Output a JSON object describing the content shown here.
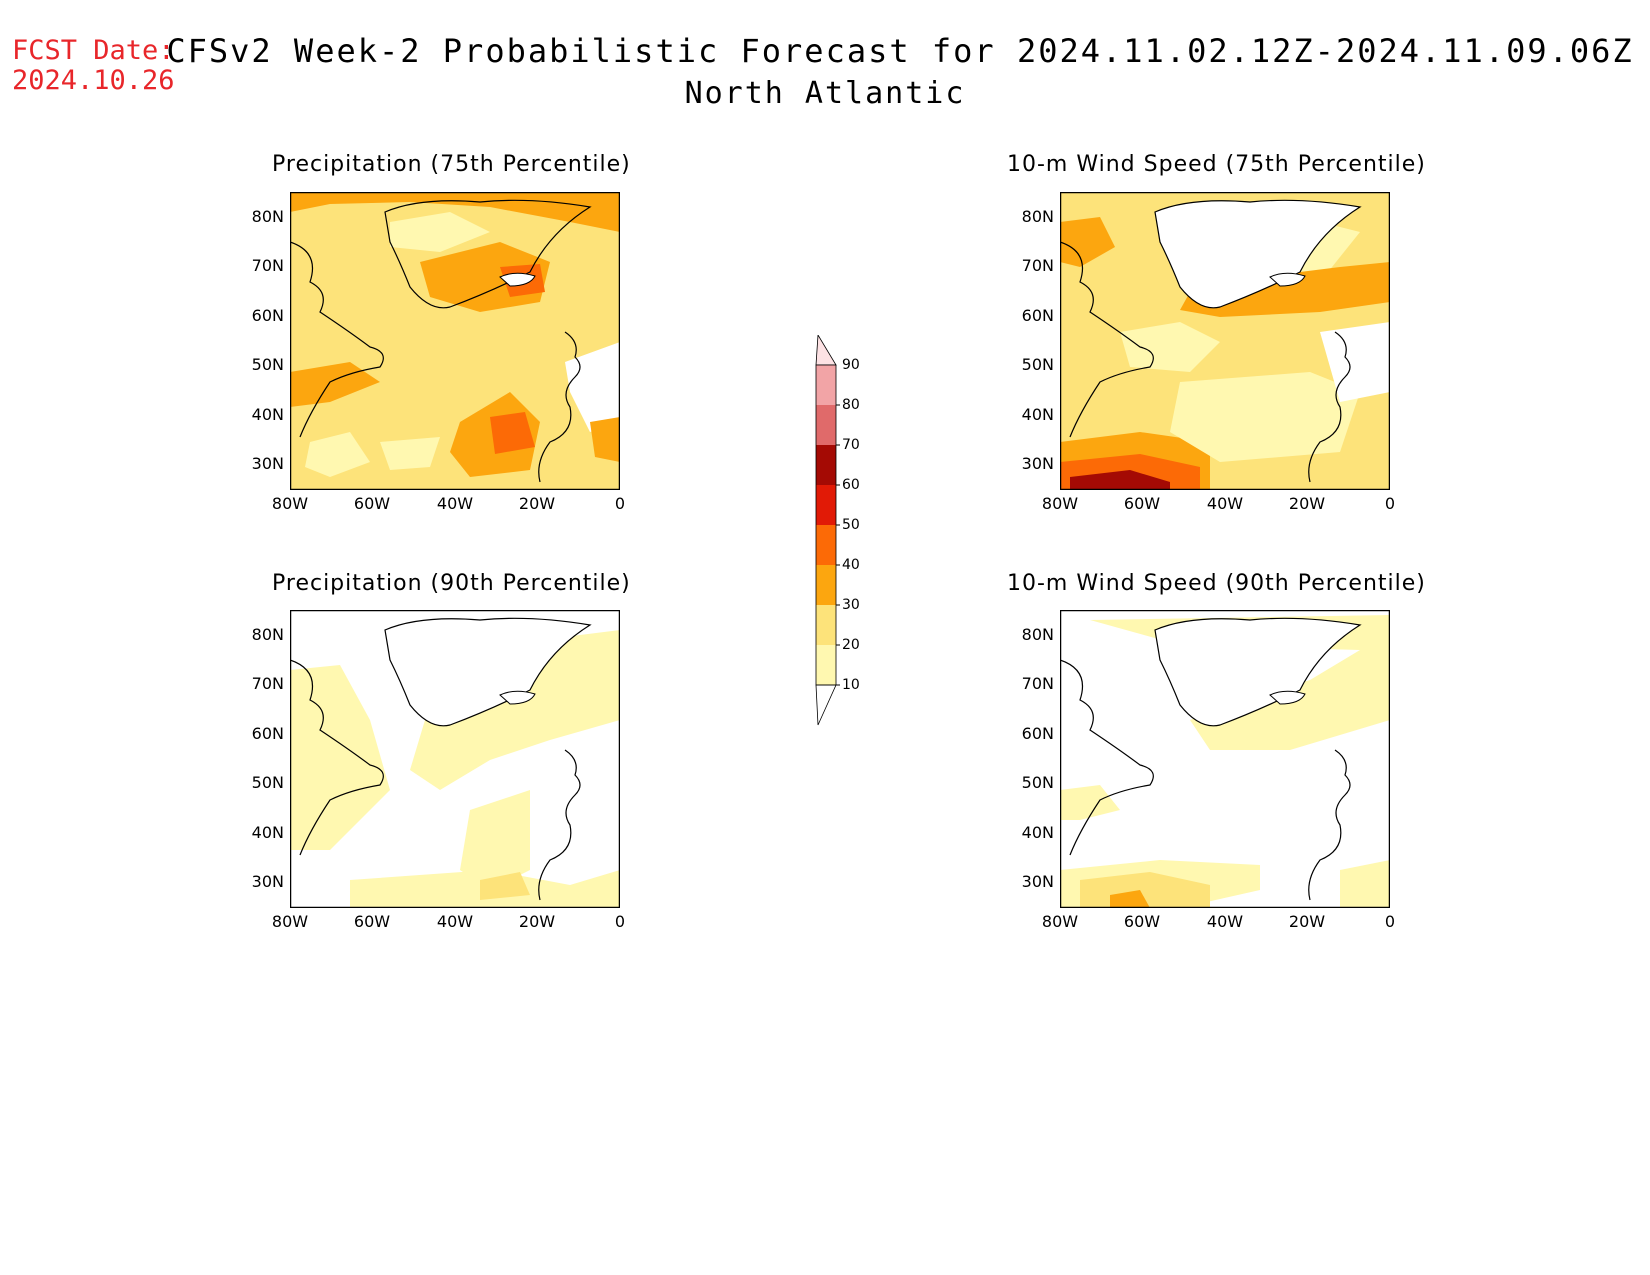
{
  "header": {
    "fcst_label": "FCST Date:",
    "fcst_date": "2024.10.26",
    "title": "CFSv2 Week-2 Probabilistic Forecast for 2024.11.02.12Z-2024.11.09.06Z",
    "subtitle": "North Atlantic"
  },
  "axes": {
    "lat_ticks": [
      "80N",
      "70N",
      "60N",
      "50N",
      "40N",
      "30N"
    ],
    "lon_ticks": [
      "80W",
      "60W",
      "40W",
      "20W",
      "0"
    ]
  },
  "panels": [
    {
      "title": "Precipitation (75th Percentile)"
    },
    {
      "title": "10-m Wind Speed (75th Percentile)"
    },
    {
      "title": "Precipitation (90th Percentile)"
    },
    {
      "title": "10-m Wind Speed (90th Percentile)"
    }
  ],
  "colorbar": {
    "levels": [
      "10",
      "20",
      "30",
      "40",
      "50",
      "60",
      "70",
      "80",
      "90"
    ],
    "colors": [
      "#fff8b0",
      "#fde37a",
      "#fca60f",
      "#fc6a06",
      "#e11a06",
      "#a40a04",
      "#e06a6a",
      "#f2a4a6",
      "#fde2e4"
    ]
  },
  "colors": {
    "fcst": "#e8262a",
    "level1": "#fff8b0",
    "level2": "#fde37a",
    "level3": "#fca60f",
    "level4": "#fc6a06",
    "level5": "#e11a06",
    "level6": "#a40a04"
  }
}
